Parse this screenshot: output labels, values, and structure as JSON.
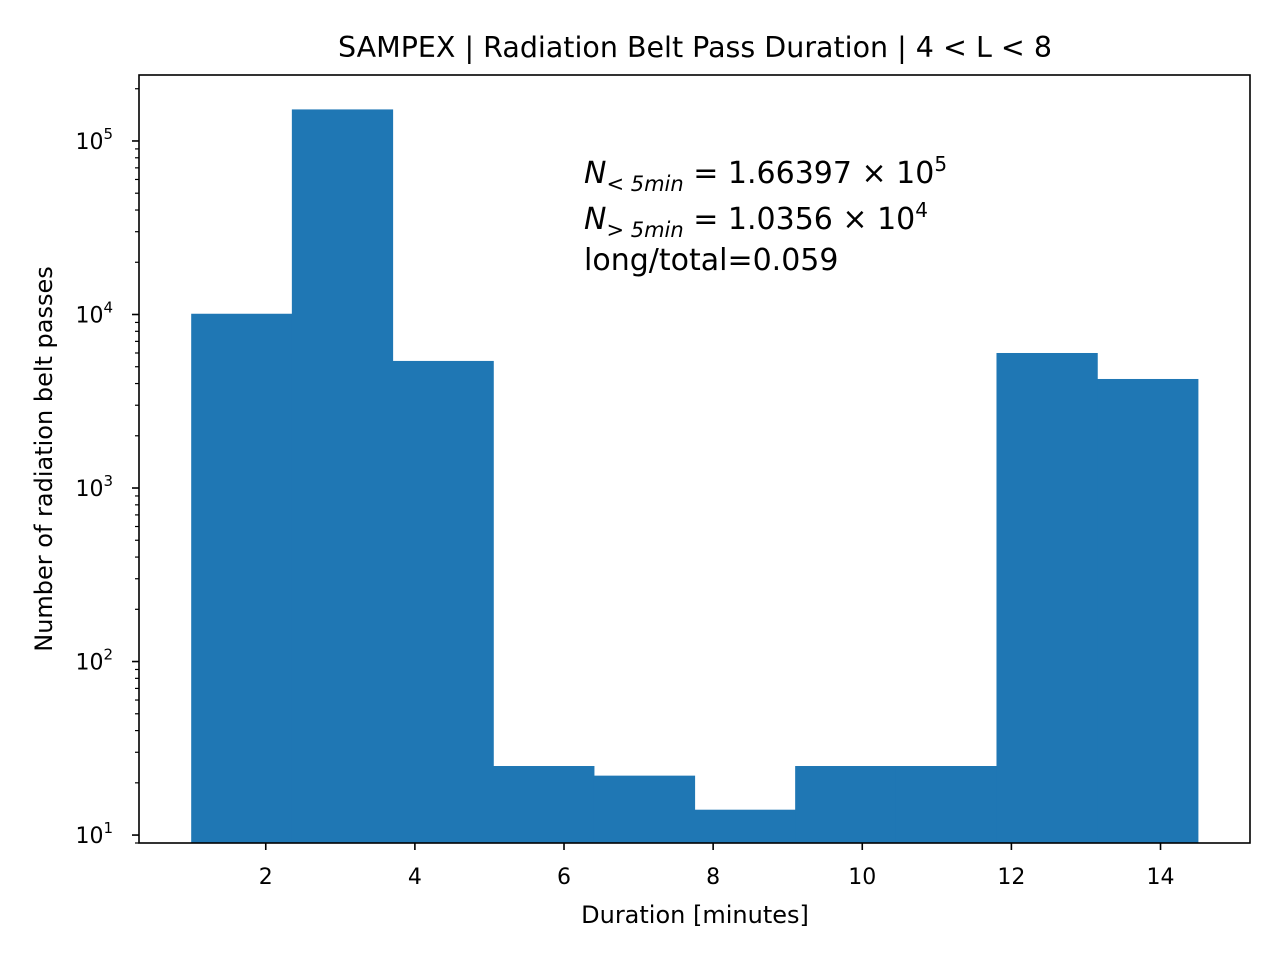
{
  "chart_data": {
    "type": "bar",
    "title": "SAMPEX | Radiation Belt Pass Duration | 4 < L < 8",
    "xlabel": "Duration [minutes]",
    "ylabel": "Number of radiation belt passes",
    "yscale": "log",
    "xlim": [
      0.3,
      15.2
    ],
    "ylim": [
      9,
      240000
    ],
    "bin_edges": [
      1.0,
      2.35,
      3.7,
      5.05,
      6.4,
      7.75,
      9.1,
      10.45,
      11.8,
      13.15,
      14.5
    ],
    "values": [
      10100,
      152000,
      5400,
      25,
      22,
      14,
      25,
      25,
      6000,
      4250
    ],
    "bar_color": "#1f77b4",
    "x_ticks": [
      {
        "value": 2,
        "label": "2"
      },
      {
        "value": 4,
        "label": "4"
      },
      {
        "value": 6,
        "label": "6"
      },
      {
        "value": 8,
        "label": "8"
      },
      {
        "value": 10,
        "label": "10"
      },
      {
        "value": 12,
        "label": "12"
      },
      {
        "value": 14,
        "label": "14"
      }
    ],
    "y_ticks": [
      {
        "value": 10,
        "base": "10",
        "exp": "1"
      },
      {
        "value": 100,
        "base": "10",
        "exp": "2"
      },
      {
        "value": 1000,
        "base": "10",
        "exp": "3"
      },
      {
        "value": 10000,
        "base": "10",
        "exp": "4"
      },
      {
        "value": 100000,
        "base": "10",
        "exp": "5"
      }
    ],
    "annotations": {
      "line1": {
        "symbol": "N",
        "subscript": "< 5min",
        "equals": " = 1.66397 × 10",
        "exp": "5"
      },
      "line2": {
        "symbol": "N",
        "subscript": "> 5min",
        "equals": " = 1.0356 × 10",
        "exp": "4"
      },
      "line3": "long/total=0.059"
    },
    "grid": false,
    "legend": "none"
  }
}
